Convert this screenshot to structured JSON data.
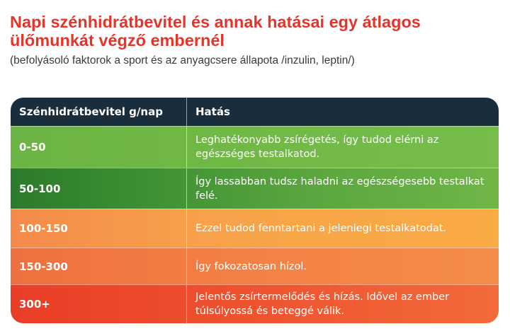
{
  "header": {
    "title": "Napi szénhidrátbevitel és annak hatásai egy átlagos ülőmunkát végző embernél",
    "subtitle": "(befolyásoló faktorok a sport és az anyagcsere állapota /inzulin, leptin/)"
  },
  "table": {
    "columns": [
      "Szénhidrátbevitel g/nap",
      "Hatás"
    ],
    "rows": [
      {
        "range": "0-50",
        "effect": "Leghatékonyabb zsírégetés, így tudod elérni az egészséges testalkatod.",
        "color": "#72b948"
      },
      {
        "range": "50-100",
        "effect": "Így lassabban tudsz haladni az egészségesebb testalkat felé.",
        "color": "#3c8e32"
      },
      {
        "range": "100-150",
        "effect": "Ezzel tudod fenntartani a jelenlegi testalkatodat.",
        "color": "#f7a24a"
      },
      {
        "range": "150-300",
        "effect": "Így fokozatosan hízol.",
        "color": "#f38145"
      },
      {
        "range": "300+",
        "effect": "Jelentős zsírtermelődés és hízás. Idővel az ember túlsúlyossá és beteggé válik.",
        "color": "#ee512e"
      }
    ]
  },
  "colors": {
    "title": "#e5352b",
    "header_bg": "#1a2d3c"
  }
}
